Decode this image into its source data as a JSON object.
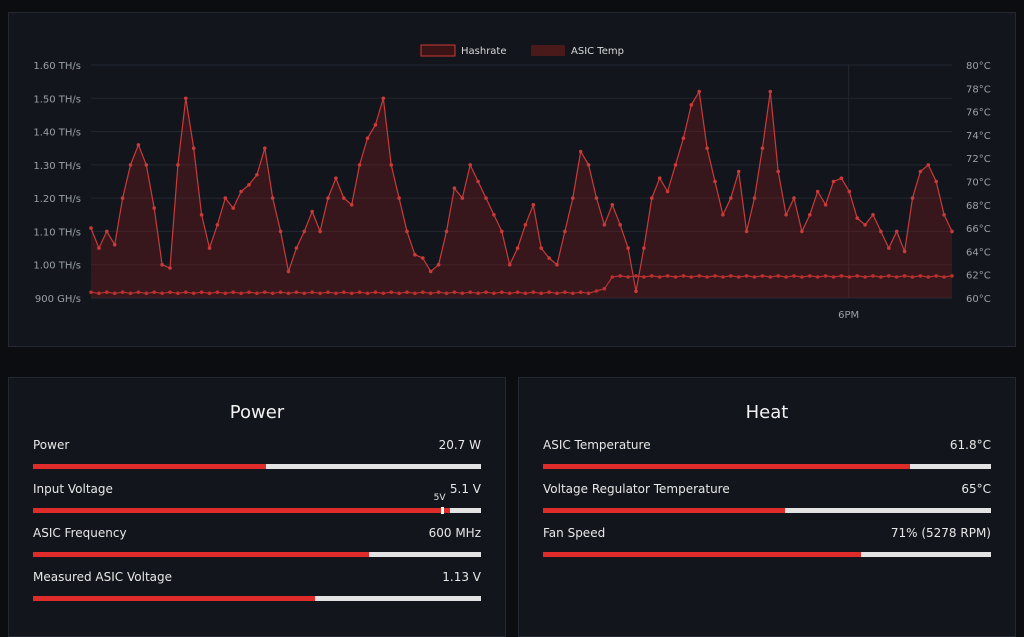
{
  "chart_data": {
    "type": "line",
    "series": [
      {
        "name": "Hashrate",
        "axis": "left",
        "color": "#c93a3a",
        "values": [
          1.11,
          1.05,
          1.1,
          1.06,
          1.2,
          1.3,
          1.36,
          1.3,
          1.17,
          1.0,
          0.99,
          1.3,
          1.5,
          1.35,
          1.15,
          1.05,
          1.12,
          1.2,
          1.17,
          1.22,
          1.24,
          1.27,
          1.35,
          1.2,
          1.1,
          0.98,
          1.05,
          1.1,
          1.16,
          1.1,
          1.2,
          1.26,
          1.2,
          1.18,
          1.3,
          1.38,
          1.42,
          1.5,
          1.3,
          1.2,
          1.1,
          1.03,
          1.02,
          0.98,
          1.0,
          1.1,
          1.23,
          1.2,
          1.3,
          1.25,
          1.2,
          1.15,
          1.1,
          1.0,
          1.05,
          1.12,
          1.18,
          1.05,
          1.02,
          1.0,
          1.1,
          1.2,
          1.34,
          1.3,
          1.2,
          1.12,
          1.18,
          1.12,
          1.05,
          0.92,
          1.05,
          1.2,
          1.26,
          1.22,
          1.3,
          1.38,
          1.48,
          1.52,
          1.35,
          1.25,
          1.15,
          1.2,
          1.28,
          1.1,
          1.2,
          1.35,
          1.52,
          1.28,
          1.15,
          1.2,
          1.1,
          1.15,
          1.22,
          1.18,
          1.25,
          1.26,
          1.22,
          1.14,
          1.12,
          1.15,
          1.1,
          1.05,
          1.1,
          1.04,
          1.2,
          1.28,
          1.3,
          1.25,
          1.15,
          1.1
        ]
      },
      {
        "name": "ASIC Temp",
        "axis": "right",
        "color": "#b83030",
        "values": [
          60.5,
          60.4,
          60.5,
          60.4,
          60.5,
          60.4,
          60.5,
          60.4,
          60.5,
          60.4,
          60.5,
          60.4,
          60.5,
          60.4,
          60.5,
          60.4,
          60.5,
          60.4,
          60.5,
          60.4,
          60.5,
          60.4,
          60.5,
          60.4,
          60.5,
          60.4,
          60.5,
          60.4,
          60.5,
          60.4,
          60.5,
          60.4,
          60.5,
          60.4,
          60.5,
          60.4,
          60.5,
          60.4,
          60.5,
          60.4,
          60.5,
          60.4,
          60.5,
          60.4,
          60.5,
          60.4,
          60.5,
          60.4,
          60.5,
          60.4,
          60.5,
          60.4,
          60.5,
          60.4,
          60.5,
          60.4,
          60.5,
          60.4,
          60.5,
          60.4,
          60.5,
          60.4,
          60.5,
          60.4,
          60.6,
          60.8,
          61.8,
          61.9,
          61.8,
          61.9,
          61.8,
          61.9,
          61.8,
          61.9,
          61.8,
          61.9,
          61.8,
          61.9,
          61.8,
          61.9,
          61.8,
          61.9,
          61.8,
          61.9,
          61.8,
          61.9,
          61.8,
          61.9,
          61.8,
          61.9,
          61.8,
          61.9,
          61.8,
          61.9,
          61.8,
          61.9,
          61.8,
          61.9,
          61.8,
          61.9,
          61.8,
          61.9,
          61.8,
          61.9,
          61.8,
          61.9,
          61.8,
          61.9,
          61.8,
          61.9
        ]
      }
    ],
    "y_left": {
      "min": 0.9,
      "max": 1.6,
      "ticks": [
        "1.60 TH/s",
        "1.50 TH/s",
        "1.40 TH/s",
        "1.30 TH/s",
        "1.20 TH/s",
        "1.10 TH/s",
        "1.00 TH/s",
        "900 GH/s"
      ]
    },
    "y_right": {
      "min": 60,
      "max": 80,
      "ticks": [
        "80°C",
        "78°C",
        "76°C",
        "74°C",
        "72°C",
        "70°C",
        "68°C",
        "66°C",
        "64°C",
        "62°C",
        "60°C"
      ]
    },
    "x_ticks": [
      {
        "label": "6PM",
        "frac": 0.88
      }
    ],
    "legend": [
      "Hashrate",
      "ASIC Temp"
    ],
    "legend_position": "top-center",
    "grid": true
  },
  "power": {
    "title": "Power",
    "metrics": [
      {
        "label": "Power",
        "value": "20.7 W",
        "fill": 0.52
      },
      {
        "label": "Input Voltage",
        "value": "5.1 V",
        "fill": 0.93,
        "marker_label": "5V",
        "marker": 0.91
      },
      {
        "label": "ASIC Frequency",
        "value": "600 MHz",
        "fill": 0.75
      },
      {
        "label": "Measured ASIC Voltage",
        "value": "1.13 V",
        "fill": 0.63
      }
    ]
  },
  "heat": {
    "title": "Heat",
    "metrics": [
      {
        "label": "ASIC Temperature",
        "value": "61.8°C",
        "fill": 0.82
      },
      {
        "label": "Voltage Regulator Temperature",
        "value": "65°C",
        "fill": 0.54
      },
      {
        "label": "Fan Speed",
        "value": "71% (5278 RPM)",
        "fill": 0.71
      }
    ]
  }
}
